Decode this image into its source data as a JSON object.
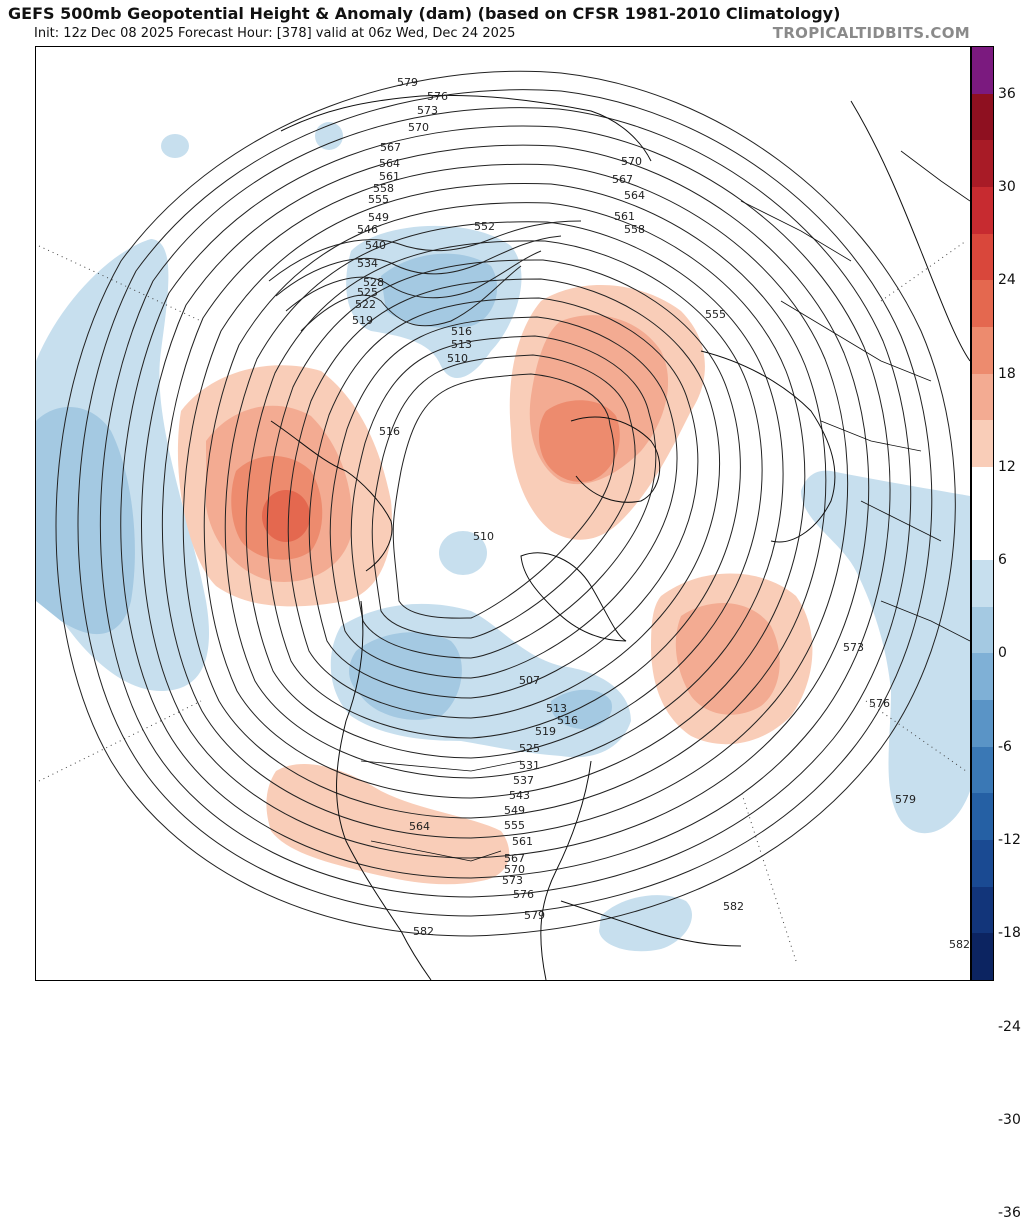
{
  "header": {
    "title": "GEFS 500mb Geopotential Height & Anomaly (dam) (based on CFSR 1981-2010 Climatology)",
    "subtitle": "Init: 12z Dec 08 2025   Forecast Hour: [378]   valid at 06z Wed, Dec 24 2025",
    "credit": "TROPICALTIDBITS.COM"
  },
  "colorbar": {
    "labels": [
      "36",
      "30",
      "24",
      "18",
      "12",
      "6",
      "0",
      "-6",
      "-12",
      "-18",
      "-24",
      "-30",
      "-36"
    ],
    "colors_top_to_bottom": [
      "#7b1a7f",
      "#8e1020",
      "#a81b26",
      "#c72b30",
      "#d9473b",
      "#e4684f",
      "#ed8b6e",
      "#f3ab92",
      "#f9cdb8",
      "#ffffff",
      "#ffffff",
      "#c7dfee",
      "#a4c9e2",
      "#7fb0d6",
      "#5a94c6",
      "#3a78b5",
      "#2560a4",
      "#1a4a92",
      "#12357a",
      "#0c2461"
    ]
  },
  "map": {
    "contour_labels": [
      {
        "text": "579"
      },
      {
        "text": "576"
      },
      {
        "text": "573"
      },
      {
        "text": "570"
      },
      {
        "text": "567"
      },
      {
        "text": "564"
      },
      {
        "text": "561"
      },
      {
        "text": "558"
      },
      {
        "text": "555"
      },
      {
        "text": "549"
      },
      {
        "text": "546"
      },
      {
        "text": "540"
      },
      {
        "text": "534"
      },
      {
        "text": "528"
      },
      {
        "text": "525"
      },
      {
        "text": "522"
      },
      {
        "text": "519"
      },
      {
        "text": "552"
      },
      {
        "text": "516"
      },
      {
        "text": "513"
      },
      {
        "text": "510"
      },
      {
        "text": "570"
      },
      {
        "text": "567"
      },
      {
        "text": "564"
      },
      {
        "text": "561"
      },
      {
        "text": "558"
      },
      {
        "text": "555"
      },
      {
        "text": "516"
      },
      {
        "text": "510"
      },
      {
        "text": "507"
      },
      {
        "text": "513"
      },
      {
        "text": "516"
      },
      {
        "text": "519"
      },
      {
        "text": "525"
      },
      {
        "text": "531"
      },
      {
        "text": "537"
      },
      {
        "text": "543"
      },
      {
        "text": "549"
      },
      {
        "text": "555"
      },
      {
        "text": "561"
      },
      {
        "text": "567"
      },
      {
        "text": "570"
      },
      {
        "text": "573"
      },
      {
        "text": "576"
      },
      {
        "text": "579"
      },
      {
        "text": "564"
      },
      {
        "text": "582"
      },
      {
        "text": "573"
      },
      {
        "text": "576"
      },
      {
        "text": "579"
      },
      {
        "text": "582"
      },
      {
        "text": "582"
      }
    ],
    "anomaly_colors": {
      "positive_light": "#f9cdb8",
      "positive_mid": "#f3ab92",
      "positive_strong": "#e4684f",
      "positive_core": "#d9473b",
      "negative_light": "#c7dfee",
      "negative_mid": "#a4c9e2"
    }
  }
}
